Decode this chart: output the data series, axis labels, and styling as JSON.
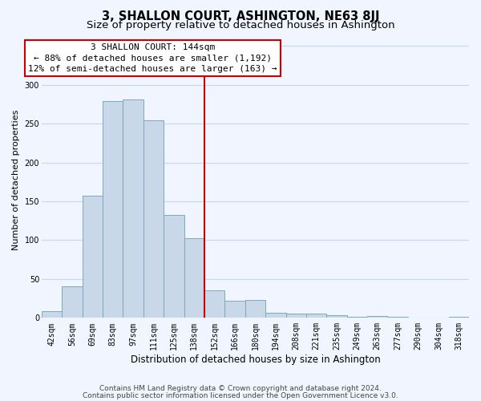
{
  "title": "3, SHALLON COURT, ASHINGTON, NE63 8JJ",
  "subtitle": "Size of property relative to detached houses in Ashington",
  "xlabel": "Distribution of detached houses by size in Ashington",
  "ylabel": "Number of detached properties",
  "bin_labels": [
    "42sqm",
    "56sqm",
    "69sqm",
    "83sqm",
    "97sqm",
    "111sqm",
    "125sqm",
    "138sqm",
    "152sqm",
    "166sqm",
    "180sqm",
    "194sqm",
    "208sqm",
    "221sqm",
    "235sqm",
    "249sqm",
    "263sqm",
    "277sqm",
    "290sqm",
    "304sqm",
    "318sqm"
  ],
  "bar_heights": [
    9,
    41,
    157,
    279,
    281,
    254,
    133,
    103,
    35,
    22,
    23,
    7,
    6,
    5,
    3,
    1,
    2,
    1,
    0,
    0,
    1
  ],
  "bar_color": "#c8d8e8",
  "bar_edge_color": "#7aaabf",
  "vline_color": "#cc0000",
  "annotation_title": "3 SHALLON COURT: 144sqm",
  "annotation_line1": "← 88% of detached houses are smaller (1,192)",
  "annotation_line2": "12% of semi-detached houses are larger (163) →",
  "ylim": [
    0,
    355
  ],
  "yticks": [
    0,
    50,
    100,
    150,
    200,
    250,
    300,
    350
  ],
  "footnote1": "Contains HM Land Registry data © Crown copyright and database right 2024.",
  "footnote2": "Contains public sector information licensed under the Open Government Licence v3.0.",
  "bg_color": "#f0f5ff",
  "grid_color": "#c8d8ee",
  "title_fontsize": 10.5,
  "subtitle_fontsize": 9.5,
  "xlabel_fontsize": 8.5,
  "ylabel_fontsize": 8,
  "tick_fontsize": 7,
  "annotation_fontsize": 8,
  "footnote_fontsize": 6.5
}
